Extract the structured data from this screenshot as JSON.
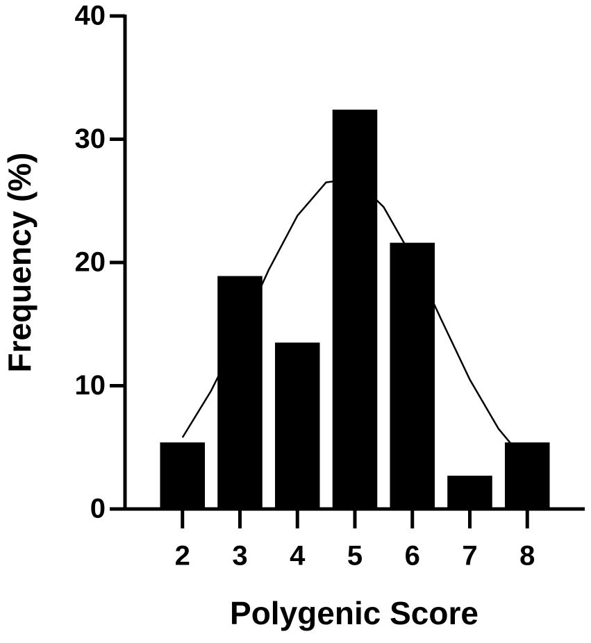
{
  "chart_data": {
    "type": "bar",
    "x_label": "Polygenic Score",
    "y_label": "Frequency (%)",
    "x": [
      2,
      3,
      4,
      5,
      6,
      7,
      8
    ],
    "values": [
      5.4,
      18.9,
      13.5,
      32.4,
      21.6,
      2.7,
      5.4
    ],
    "color": "#000000",
    "fit_curve": {
      "x": [
        2,
        2.5,
        3,
        3.5,
        4,
        4.5,
        5,
        5.5,
        6,
        6.5,
        7,
        7.5,
        8
      ],
      "values": [
        5.8,
        9.6,
        14.3,
        19.4,
        23.8,
        26.5,
        26.8,
        24.5,
        20.4,
        15.4,
        10.5,
        6.5,
        3.7
      ],
      "color": "#000000"
    },
    "xlim": [
      1,
      9
    ],
    "xticks": [
      2,
      3,
      4,
      5,
      6,
      7,
      8
    ],
    "ylim": [
      0,
      40
    ],
    "yticks": [
      0,
      10,
      20,
      30,
      40
    ],
    "grid": false
  }
}
